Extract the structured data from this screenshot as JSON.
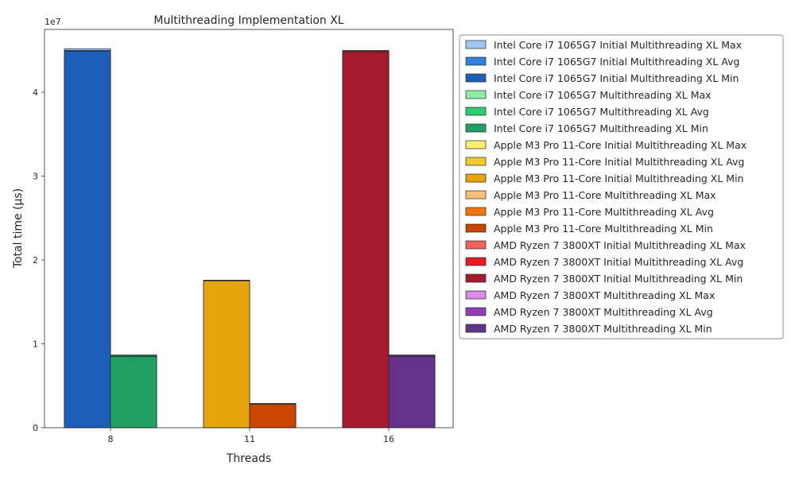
{
  "chart_data": {
    "type": "bar",
    "title": "Multithreading Implementation XL",
    "xlabel": "Threads",
    "ylabel": "Total time (µs)",
    "y_scale_label": "1e7",
    "ylim": [
      0,
      47500000
    ],
    "yticks": [
      0,
      10000000,
      20000000,
      30000000,
      40000000
    ],
    "ytick_labels": [
      "0",
      "1",
      "2",
      "3",
      "4"
    ],
    "categories": [
      "8",
      "11",
      "16"
    ],
    "legend_position": "outside-right",
    "grid": false,
    "series": [
      {
        "name": "Intel Core i7 1065G7 Initial Multithreading XL Max",
        "color": "#9ec5f5",
        "values": [
          45200000,
          null,
          null
        ]
      },
      {
        "name": "Intel Core i7 1065G7 Initial Multithreading XL Avg",
        "color": "#2f80e0",
        "values": [
          45000000,
          null,
          null
        ]
      },
      {
        "name": "Intel Core i7 1065G7 Initial Multithreading XL Min",
        "color": "#1c5eb8",
        "values": [
          44900000,
          null,
          null
        ]
      },
      {
        "name": "Intel Core i7 1065G7 Multithreading XL Max",
        "color": "#8eeba6",
        "values": [
          8700000,
          null,
          null
        ]
      },
      {
        "name": "Intel Core i7 1065G7 Multithreading XL Avg",
        "color": "#2ecc71",
        "values": [
          8600000,
          null,
          null
        ]
      },
      {
        "name": "Intel Core i7 1065G7 Multithreading XL Min",
        "color": "#22a064",
        "values": [
          8500000,
          null,
          null
        ]
      },
      {
        "name": "Apple M3 Pro 11-Core Initial Multithreading  XL Max",
        "color": "#f9ee6b",
        "values": [
          null,
          17600000,
          null
        ]
      },
      {
        "name": "Apple M3 Pro 11-Core Initial Multithreading  XL Avg",
        "color": "#f4cc29",
        "values": [
          null,
          17550000,
          null
        ]
      },
      {
        "name": "Apple M3 Pro 11-Core Initial Multithreading  XL Min",
        "color": "#e6a50a",
        "values": [
          null,
          17500000,
          null
        ]
      },
      {
        "name": "Apple M3 Pro 11-Core Multithreading XL Max",
        "color": "#fbbf78",
        "values": [
          null,
          2900000,
          null
        ]
      },
      {
        "name": "Apple M3 Pro 11-Core Multithreading XL Avg",
        "color": "#f6740c",
        "values": [
          null,
          2850000,
          null
        ]
      },
      {
        "name": "Apple M3 Pro 11-Core Multithreading XL Min",
        "color": "#c84601",
        "values": [
          null,
          2800000,
          null
        ]
      },
      {
        "name": "AMD Ryzen 7 3800XT Initial Multithreading  XL Max",
        "color": "#f0625a",
        "values": [
          null,
          null,
          45000000
        ]
      },
      {
        "name": "AMD Ryzen 7 3800XT Initial Multithreading  XL Avg",
        "color": "#e31b23",
        "values": [
          null,
          null,
          44900000
        ]
      },
      {
        "name": "AMD Ryzen 7 3800XT Initial Multithreading  XL Min",
        "color": "#a51b2d",
        "values": [
          null,
          null,
          44800000
        ]
      },
      {
        "name": "AMD Ryzen 7 3800XT Multithreading XL Max",
        "color": "#d88ee0",
        "values": [
          null,
          null,
          8700000
        ]
      },
      {
        "name": "AMD Ryzen 7 3800XT Multithreading XL Avg",
        "color": "#8e3fb5",
        "values": [
          null,
          null,
          8600000
        ]
      },
      {
        "name": "AMD Ryzen 7 3800XT Multithreading XL Min",
        "color": "#623388",
        "values": [
          null,
          null,
          8500000
        ]
      }
    ]
  }
}
